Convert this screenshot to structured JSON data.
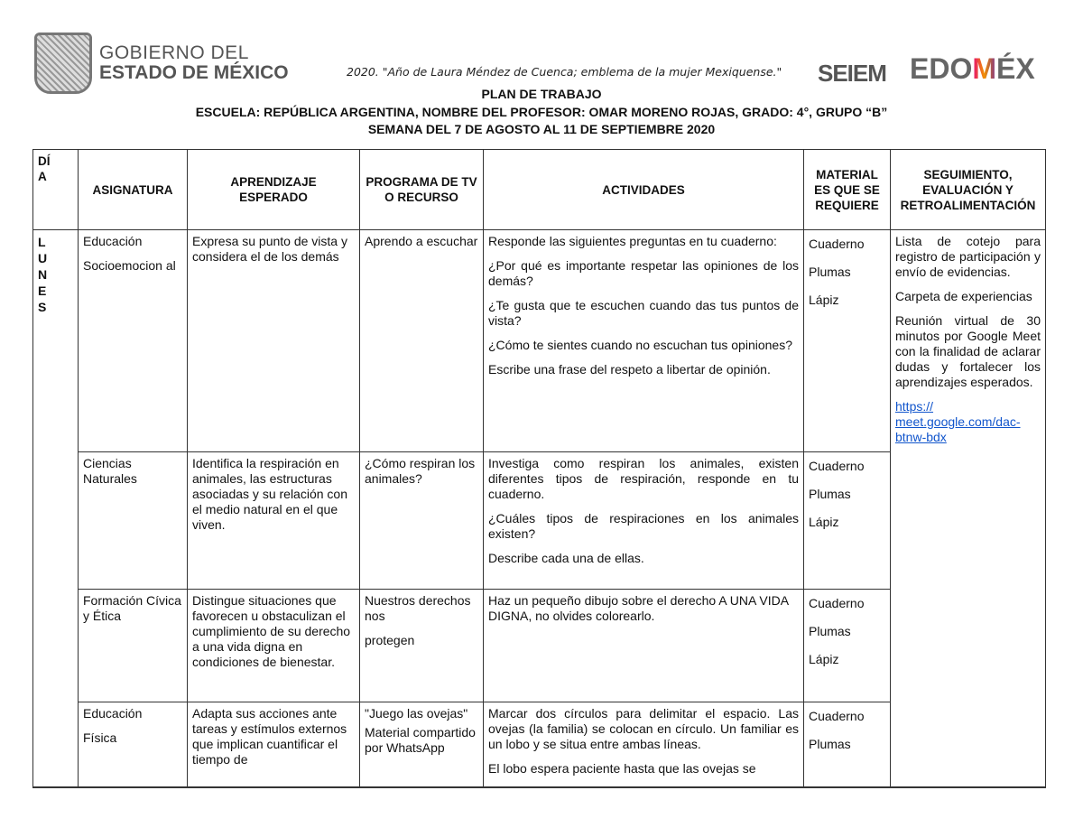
{
  "header": {
    "gov_logo": {
      "line1": "GOBIERNO DEL",
      "line2": "ESTADO DE MÉXICO"
    },
    "motto": "2020. \"Año de Laura Méndez de Cuenca; emblema de la mujer Mexiquense.\"",
    "seiem_logo": "SEIEM",
    "edomex_logo": "EDOMÉX",
    "title": "PLAN DE TRABAJO",
    "school_line": "ESCUELA: REPÚBLICA ARGENTINA, NOMBRE DEL PROFESOR: OMAR MORENO ROJAS, GRADO: 4°,  GRUPO “B”",
    "week_line": "SEMANA DEL 7 DE AGOSTO AL 11 DE SEPTIEMBRE 2020"
  },
  "table": {
    "headers": [
      "DÍ A",
      "ASIGNATURA",
      "APRENDIZAJE ESPERADO",
      "PROGRAMA DE TV O RECURSO",
      "ACTIVIDADES",
      "MATERIAL ES QUE SE REQUIERE",
      "SEGUIMIENTO, EVALUACIÓN Y RETROALIMENTACIÓN"
    ],
    "day": [
      "L",
      "U",
      "N",
      "E",
      "S"
    ],
    "rows": [
      {
        "subject": [
          " Educación",
          "Socioemocion al"
        ],
        "learning": " Expresa su punto de vista y considera el de los demás",
        "program": [
          "Aprendo a escuchar"
        ],
        "activities": [
          "Responde las siguientes preguntas en tu cuaderno:",
          "¿Por qué es importante respetar las opiniones de los demás?",
          "¿Te gusta que te escuchen cuando das tus puntos de vista?",
          "¿Cómo te sientes cuando no escuchan tus opiniones?",
          "Escribe una frase del respeto a libertar de opinión."
        ],
        "materials": [
          "Cuaderno",
          "Plumas",
          "Lápiz"
        ]
      },
      {
        "subject": [
          " Ciencias Naturales"
        ],
        "learning": " Identifica la respiración en animales, las estructuras asociadas y su relación con el medio natural en el que viven.",
        "program": [
          " ¿Cómo respiran los animales?"
        ],
        "activities": [
          "Investiga como respiran los animales, existen diferentes tipos de respiración, responde en tu cuaderno.",
          "¿Cuáles tipos de respiraciones en los animales existen?",
          "Describe cada una de ellas."
        ],
        "materials": [
          "Cuaderno",
          "Plumas",
          "Lápiz"
        ]
      },
      {
        "subject": [
          "Formación Cívica y Ética"
        ],
        "learning": "Distingue situaciones que favorecen u obstaculizan el cumplimiento de su derecho a una vida digna en condiciones de bienestar.",
        "program": [
          "Nuestros derechos nos",
          "protegen"
        ],
        "activities": [
          "Haz un pequeño dibujo sobre el derecho A UNA VIDA DIGNA, no olvides colorearlo."
        ],
        "materials": [
          "Cuaderno",
          "Plumas",
          "Lápiz"
        ]
      },
      {
        "subject": [
          " Educación",
          "Física"
        ],
        "learning": "Adapta sus acciones ante tareas y estímulos externos que implican cuantificar el tiempo de",
        "program": [
          "\"Juego las ovejas\"",
          "Material compartido por WhatsApp"
        ],
        "activities": [
          "Marcar dos círculos para delimitar el espacio. Las ovejas (la familia) se colocan en círculo. Un familiar es un lobo y se situa entre ambas líneas.",
          "El lobo espera paciente hasta que las ovejas se"
        ],
        "materials": [
          "Cuaderno",
          "Plumas"
        ]
      }
    ],
    "followup": [
      "Lista de cotejo para registro de participación y envío de evidencias.",
      "Carpeta de experiencias",
      "Reunión virtual de 30 minutos por Google Meet con la finalidad de aclarar dudas y fortalecer los aprendizajes esperados."
    ],
    "link": "https:// meet.google.com/dac-btnw-bdx",
    "link_color": "#1155cc"
  }
}
